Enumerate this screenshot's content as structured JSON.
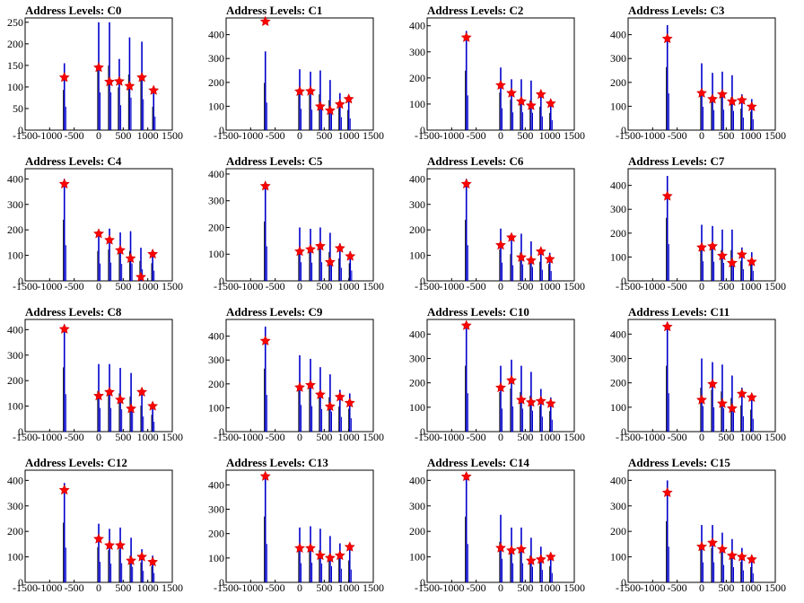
{
  "chart_data": [
    {
      "title": "Address Levels: C0",
      "type": "histogram",
      "xlim": [
        -1500,
        1500
      ],
      "ylim": [
        0,
        260
      ],
      "x_ticks": [
        -1500,
        -1000,
        -500,
        0,
        500,
        1000,
        1500
      ],
      "y_ticks": [
        0,
        50,
        100,
        150,
        200,
        250
      ],
      "peaks": [
        {
          "x": -700,
          "height": 155,
          "fit": 122
        },
        {
          "x": 0,
          "height": 250,
          "fit": 145
        },
        {
          "x": 220,
          "height": 250,
          "fit": 112
        },
        {
          "x": 420,
          "height": 165,
          "fit": 113
        },
        {
          "x": 630,
          "height": 215,
          "fit": 102
        },
        {
          "x": 880,
          "height": 205,
          "fit": 122
        },
        {
          "x": 1120,
          "height": 90,
          "fit": 92
        }
      ]
    },
    {
      "title": "Address Levels: C1",
      "type": "histogram",
      "xlim": [
        -1500,
        1500
      ],
      "ylim": [
        0,
        470
      ],
      "x_ticks": [
        -1500,
        -1000,
        -500,
        0,
        500,
        1000,
        1500
      ],
      "y_ticks": [
        0,
        100,
        200,
        300,
        400
      ],
      "peaks": [
        {
          "x": -700,
          "height": 330,
          "fit": 455
        },
        {
          "x": 0,
          "height": 255,
          "fit": 162
        },
        {
          "x": 220,
          "height": 245,
          "fit": 163
        },
        {
          "x": 420,
          "height": 250,
          "fit": 99
        },
        {
          "x": 620,
          "height": 210,
          "fit": 82
        },
        {
          "x": 820,
          "height": 155,
          "fit": 108
        },
        {
          "x": 1000,
          "height": 140,
          "fit": 130
        }
      ]
    },
    {
      "title": "Address Levels: C2",
      "type": "histogram",
      "xlim": [
        -1500,
        1500
      ],
      "ylim": [
        0,
        430
      ],
      "x_ticks": [
        -1500,
        -1000,
        -500,
        0,
        500,
        1000,
        1500
      ],
      "y_ticks": [
        0,
        100,
        200,
        300,
        400
      ],
      "peaks": [
        {
          "x": -700,
          "height": 380,
          "fit": 355
        },
        {
          "x": 0,
          "height": 240,
          "fit": 172
        },
        {
          "x": 220,
          "height": 195,
          "fit": 142
        },
        {
          "x": 420,
          "height": 195,
          "fit": 110
        },
        {
          "x": 620,
          "height": 190,
          "fit": 94
        },
        {
          "x": 820,
          "height": 150,
          "fit": 137
        },
        {
          "x": 1020,
          "height": 110,
          "fit": 102
        }
      ]
    },
    {
      "title": "Address Levels: C3",
      "type": "histogram",
      "xlim": [
        -1500,
        1500
      ],
      "ylim": [
        0,
        470
      ],
      "x_ticks": [
        -1500,
        -1000,
        -500,
        0,
        500,
        1000,
        1500
      ],
      "y_ticks": [
        0,
        100,
        200,
        300,
        400
      ],
      "peaks": [
        {
          "x": -700,
          "height": 440,
          "fit": 383
        },
        {
          "x": 0,
          "height": 280,
          "fit": 155
        },
        {
          "x": 220,
          "height": 240,
          "fit": 130
        },
        {
          "x": 420,
          "height": 245,
          "fit": 150
        },
        {
          "x": 620,
          "height": 230,
          "fit": 120
        },
        {
          "x": 820,
          "height": 150,
          "fit": 125
        },
        {
          "x": 1020,
          "height": 130,
          "fit": 98
        }
      ]
    },
    {
      "title": "Address Levels: C4",
      "type": "histogram",
      "xlim": [
        -1500,
        1500
      ],
      "ylim": [
        0,
        440
      ],
      "x_ticks": [
        -1500,
        -1000,
        -500,
        0,
        500,
        1000,
        1500
      ],
      "y_ticks": [
        0,
        100,
        200,
        300,
        400
      ],
      "peaks": [
        {
          "x": -700,
          "height": 400,
          "fit": 380
        },
        {
          "x": 0,
          "height": 195,
          "fit": 185
        },
        {
          "x": 220,
          "height": 205,
          "fit": 160
        },
        {
          "x": 440,
          "height": 190,
          "fit": 120
        },
        {
          "x": 650,
          "height": 195,
          "fit": 88
        },
        {
          "x": 860,
          "height": 130,
          "fit": 15
        },
        {
          "x": 1100,
          "height": 115,
          "fit": 105
        }
      ]
    },
    {
      "title": "Address Levels: C5",
      "type": "histogram",
      "xlim": [
        -1500,
        1500
      ],
      "ylim": [
        0,
        420
      ],
      "x_ticks": [
        -1500,
        -1000,
        -500,
        0,
        500,
        1000,
        1500
      ],
      "y_ticks": [
        0,
        100,
        200,
        300,
        400
      ],
      "peaks": [
        {
          "x": -700,
          "height": 370,
          "fit": 355
        },
        {
          "x": 0,
          "height": 200,
          "fit": 110
        },
        {
          "x": 220,
          "height": 195,
          "fit": 118
        },
        {
          "x": 420,
          "height": 200,
          "fit": 130
        },
        {
          "x": 620,
          "height": 180,
          "fit": 70
        },
        {
          "x": 820,
          "height": 140,
          "fit": 122
        },
        {
          "x": 1030,
          "height": 110,
          "fit": 92
        }
      ]
    },
    {
      "title": "Address Levels: C6",
      "type": "histogram",
      "xlim": [
        -1500,
        1500
      ],
      "ylim": [
        0,
        440
      ],
      "x_ticks": [
        -1500,
        -1000,
        -500,
        0,
        500,
        1000,
        1500
      ],
      "y_ticks": [
        0,
        100,
        200,
        300,
        400
      ],
      "peaks": [
        {
          "x": -700,
          "height": 400,
          "fit": 380
        },
        {
          "x": 0,
          "height": 205,
          "fit": 140
        },
        {
          "x": 220,
          "height": 175,
          "fit": 170
        },
        {
          "x": 420,
          "height": 185,
          "fit": 92
        },
        {
          "x": 620,
          "height": 155,
          "fit": 80
        },
        {
          "x": 820,
          "height": 125,
          "fit": 115
        },
        {
          "x": 1000,
          "height": 110,
          "fit": 85
        }
      ]
    },
    {
      "title": "Address Levels: C7",
      "type": "histogram",
      "xlim": [
        -1500,
        1500
      ],
      "ylim": [
        0,
        470
      ],
      "x_ticks": [
        -1500,
        -1000,
        -500,
        0,
        500,
        1000,
        1500
      ],
      "y_ticks": [
        0,
        100,
        200,
        300,
        400
      ],
      "peaks": [
        {
          "x": -700,
          "height": 440,
          "fit": 355
        },
        {
          "x": 0,
          "height": 235,
          "fit": 140
        },
        {
          "x": 220,
          "height": 230,
          "fit": 145
        },
        {
          "x": 420,
          "height": 215,
          "fit": 105
        },
        {
          "x": 620,
          "height": 215,
          "fit": 75
        },
        {
          "x": 820,
          "height": 140,
          "fit": 110
        },
        {
          "x": 1020,
          "height": 120,
          "fit": 80
        }
      ]
    },
    {
      "title": "Address Levels: C8",
      "type": "histogram",
      "xlim": [
        -1500,
        1500
      ],
      "ylim": [
        0,
        440
      ],
      "x_ticks": [
        -1500,
        -1000,
        -500,
        0,
        500,
        1000,
        1500
      ],
      "y_ticks": [
        0,
        100,
        200,
        300,
        400
      ],
      "peaks": [
        {
          "x": -700,
          "height": 420,
          "fit": 402
        },
        {
          "x": 0,
          "height": 265,
          "fit": 140
        },
        {
          "x": 220,
          "height": 265,
          "fit": 155
        },
        {
          "x": 440,
          "height": 250,
          "fit": 125
        },
        {
          "x": 660,
          "height": 230,
          "fit": 90
        },
        {
          "x": 880,
          "height": 170,
          "fit": 155
        },
        {
          "x": 1100,
          "height": 110,
          "fit": 100
        }
      ]
    },
    {
      "title": "Address Levels: C9",
      "type": "histogram",
      "xlim": [
        -1500,
        1500
      ],
      "ylim": [
        0,
        470
      ],
      "x_ticks": [
        -1500,
        -1000,
        -500,
        0,
        500,
        1000,
        1500
      ],
      "y_ticks": [
        0,
        100,
        200,
        300,
        400
      ],
      "peaks": [
        {
          "x": -700,
          "height": 440,
          "fit": 380
        },
        {
          "x": 0,
          "height": 320,
          "fit": 185
        },
        {
          "x": 220,
          "height": 305,
          "fit": 195
        },
        {
          "x": 420,
          "height": 270,
          "fit": 155
        },
        {
          "x": 620,
          "height": 240,
          "fit": 105
        },
        {
          "x": 820,
          "height": 175,
          "fit": 145
        },
        {
          "x": 1020,
          "height": 160,
          "fit": 120
        }
      ]
    },
    {
      "title": "Address Levels: C10",
      "type": "histogram",
      "xlim": [
        -1500,
        1500
      ],
      "ylim": [
        0,
        460
      ],
      "x_ticks": [
        -1500,
        -1000,
        -500,
        0,
        500,
        1000,
        1500
      ],
      "y_ticks": [
        0,
        100,
        200,
        300,
        400
      ],
      "peaks": [
        {
          "x": -700,
          "height": 450,
          "fit": 435
        },
        {
          "x": 0,
          "height": 270,
          "fit": 180
        },
        {
          "x": 220,
          "height": 295,
          "fit": 210
        },
        {
          "x": 420,
          "height": 270,
          "fit": 130
        },
        {
          "x": 620,
          "height": 245,
          "fit": 120
        },
        {
          "x": 820,
          "height": 175,
          "fit": 125
        },
        {
          "x": 1020,
          "height": 140,
          "fit": 115
        }
      ]
    },
    {
      "title": "Address Levels: C11",
      "type": "histogram",
      "xlim": [
        -1500,
        1500
      ],
      "ylim": [
        0,
        460
      ],
      "x_ticks": [
        -1500,
        -1000,
        -500,
        0,
        500,
        1000,
        1500
      ],
      "y_ticks": [
        0,
        100,
        200,
        300,
        400
      ],
      "peaks": [
        {
          "x": -700,
          "height": 450,
          "fit": 430
        },
        {
          "x": 0,
          "height": 300,
          "fit": 130
        },
        {
          "x": 220,
          "height": 285,
          "fit": 195
        },
        {
          "x": 420,
          "height": 275,
          "fit": 115
        },
        {
          "x": 620,
          "height": 230,
          "fit": 95
        },
        {
          "x": 820,
          "height": 180,
          "fit": 155
        },
        {
          "x": 1020,
          "height": 150,
          "fit": 140
        }
      ]
    },
    {
      "title": "Address Levels: C12",
      "type": "histogram",
      "xlim": [
        -1500,
        1500
      ],
      "ylim": [
        0,
        440
      ],
      "x_ticks": [
        -1500,
        -1000,
        -500,
        0,
        500,
        1000,
        1500
      ],
      "y_ticks": [
        0,
        100,
        200,
        300,
        400
      ],
      "peaks": [
        {
          "x": -700,
          "height": 390,
          "fit": 362
        },
        {
          "x": 0,
          "height": 230,
          "fit": 170
        },
        {
          "x": 220,
          "height": 210,
          "fit": 145
        },
        {
          "x": 440,
          "height": 215,
          "fit": 145
        },
        {
          "x": 660,
          "height": 175,
          "fit": 85
        },
        {
          "x": 880,
          "height": 130,
          "fit": 100
        },
        {
          "x": 1100,
          "height": 105,
          "fit": 80
        }
      ]
    },
    {
      "title": "Address Levels: C13",
      "type": "histogram",
      "xlim": [
        -1500,
        1500
      ],
      "ylim": [
        0,
        460
      ],
      "x_ticks": [
        -1500,
        -1000,
        -500,
        0,
        500,
        1000,
        1500
      ],
      "y_ticks": [
        0,
        100,
        200,
        300,
        400
      ],
      "peaks": [
        {
          "x": -700,
          "height": 450,
          "fit": 435
        },
        {
          "x": 0,
          "height": 225,
          "fit": 140
        },
        {
          "x": 220,
          "height": 230,
          "fit": 140
        },
        {
          "x": 420,
          "height": 220,
          "fit": 110
        },
        {
          "x": 620,
          "height": 190,
          "fit": 100
        },
        {
          "x": 820,
          "height": 160,
          "fit": 110
        },
        {
          "x": 1020,
          "height": 150,
          "fit": 145
        }
      ]
    },
    {
      "title": "Address Levels: C14",
      "type": "histogram",
      "xlim": [
        -1500,
        1500
      ],
      "ylim": [
        0,
        440
      ],
      "x_ticks": [
        -1500,
        -1000,
        -500,
        0,
        500,
        1000,
        1500
      ],
      "y_ticks": [
        0,
        100,
        200,
        300,
        400
      ],
      "peaks": [
        {
          "x": -700,
          "height": 430,
          "fit": 415
        },
        {
          "x": 0,
          "height": 265,
          "fit": 135
        },
        {
          "x": 220,
          "height": 215,
          "fit": 125
        },
        {
          "x": 420,
          "height": 215,
          "fit": 130
        },
        {
          "x": 620,
          "height": 175,
          "fit": 85
        },
        {
          "x": 820,
          "height": 140,
          "fit": 90
        },
        {
          "x": 1020,
          "height": 105,
          "fit": 100
        }
      ]
    },
    {
      "title": "Address Levels: C15",
      "type": "histogram",
      "xlim": [
        -1500,
        1500
      ],
      "ylim": [
        0,
        440
      ],
      "x_ticks": [
        -1500,
        -1000,
        -500,
        0,
        500,
        1000,
        1500
      ],
      "y_ticks": [
        0,
        100,
        200,
        300,
        400
      ],
      "peaks": [
        {
          "x": -700,
          "height": 400,
          "fit": 352
        },
        {
          "x": 0,
          "height": 225,
          "fit": 140
        },
        {
          "x": 220,
          "height": 225,
          "fit": 155
        },
        {
          "x": 420,
          "height": 195,
          "fit": 130
        },
        {
          "x": 620,
          "height": 170,
          "fit": 105
        },
        {
          "x": 820,
          "height": 135,
          "fit": 100
        },
        {
          "x": 1020,
          "height": 100,
          "fit": 90
        }
      ]
    }
  ],
  "colors": {
    "histogram": "#0000cc",
    "marker": "#ff0000",
    "marker_outline": "#cc0000",
    "axis": "#000000",
    "background": "#ffffff"
  }
}
